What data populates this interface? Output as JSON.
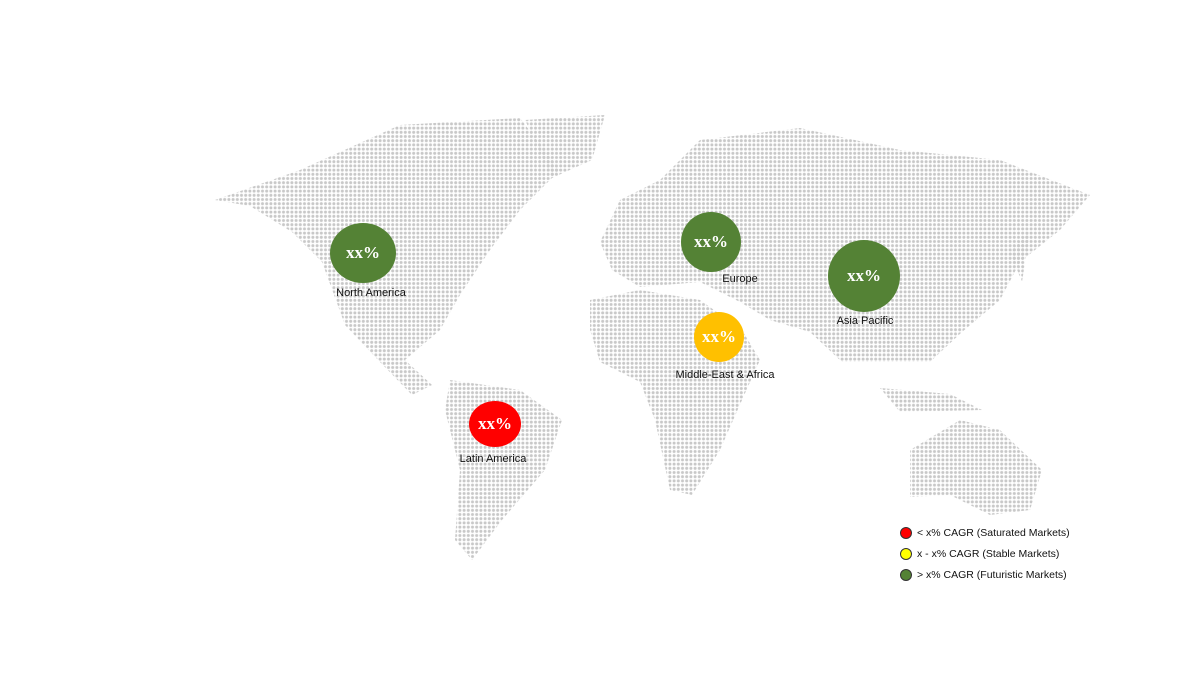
{
  "regions": [
    {
      "name": "North America",
      "value": "xx%",
      "color": "#548235"
    },
    {
      "name": "Europe",
      "value": "xx%",
      "color": "#548235"
    },
    {
      "name": "Asia Pacific",
      "value": "xx%",
      "color": "#548235"
    },
    {
      "name": "Middle-East & Africa",
      "value": "xx%",
      "color": "#ffc000"
    },
    {
      "name": "Latin America",
      "value": "xx%",
      "color": "#ff0000"
    }
  ],
  "legend": [
    {
      "label": "< x% CAGR (Saturated Markets)",
      "color": "#ff0000"
    },
    {
      "label": "x - x% CAGR (Stable Markets)",
      "color": "#ffff00"
    },
    {
      "label": "> x% CAGR (Futuristic Markets)",
      "color": "#548235"
    }
  ],
  "map_dot_color": "#c8c8c8"
}
